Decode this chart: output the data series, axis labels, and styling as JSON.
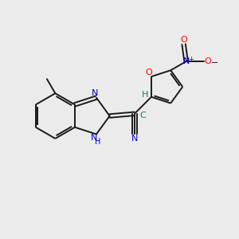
{
  "bg_color": "#ebebeb",
  "bond_color": "#1a1a1a",
  "nitrogen_color": "#0000cd",
  "oxygen_color": "#ff0000",
  "cyan_color": "#008080",
  "text_color": "#1a1a1a",
  "figsize": [
    3.0,
    3.0
  ],
  "dpi": 100,
  "xlim": [
    0,
    10
  ],
  "ylim": [
    0,
    10
  ]
}
